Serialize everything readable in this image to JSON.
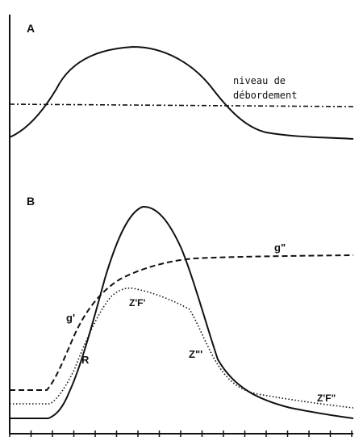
{
  "panel_a": {
    "label": "A",
    "annotation_line1": "niveau de",
    "annotation_line2": "débordement"
  },
  "panel_b": {
    "label": "B",
    "labels": {
      "g2": "g\"",
      "g1": "g'",
      "zf1": "Z'F'",
      "r": "R",
      "z3": "Z\"'",
      "zf2": "Z'F\""
    }
  },
  "colors": {
    "ink": "#111111",
    "paper": "#ffffff"
  }
}
